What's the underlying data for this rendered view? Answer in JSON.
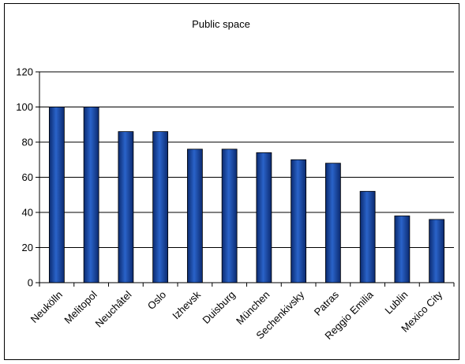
{
  "chart_data": {
    "type": "bar",
    "title": "Public space",
    "xlabel": "",
    "ylabel": "",
    "categories": [
      "Neukölln",
      "Melitopol",
      "Neuchâtel",
      "Oslo",
      "Izhevsk",
      "Duisburg",
      "München",
      "Sechenkivsky",
      "Patras",
      "Reggio Emilia",
      "Lublin",
      "Mexico City"
    ],
    "values": [
      100,
      100,
      86,
      86,
      76,
      76,
      74,
      70,
      68,
      52,
      38,
      36
    ],
    "ylim": [
      0,
      120
    ],
    "yticks": [
      0,
      20,
      40,
      60,
      80,
      100,
      120
    ],
    "grid": true,
    "legend": "none",
    "bar_color": "#1f4e9e"
  }
}
